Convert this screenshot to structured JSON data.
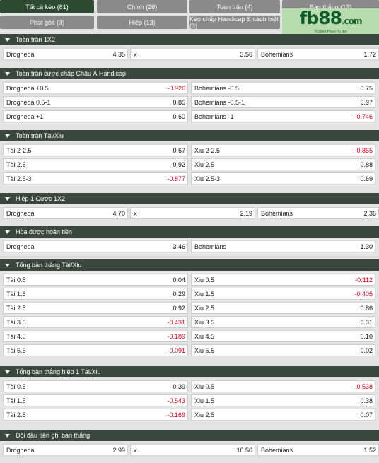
{
  "tabs": [
    {
      "label": "Tất cả kèo (81)",
      "active": true
    },
    {
      "label": "Chính (26)"
    },
    {
      "label": "Toàn trận (4)"
    },
    {
      "label": "Bàn thắng (13)"
    },
    {
      "label": "Phạt góc (3)"
    },
    {
      "label": "Hiệp (13)"
    },
    {
      "label": "Kèo chấp Handicap & cách biệt (3)"
    }
  ],
  "logo": {
    "main": "fb88",
    "dot": ".com",
    "tagline": "Trusted Place To Bet"
  },
  "sections": [
    {
      "title": "Toàn trận 1X2",
      "layout": "three",
      "rows": [
        [
          {
            "label": "Drogheda",
            "odd": "4.35"
          },
          {
            "label": "x",
            "odd": "3.56"
          },
          {
            "label": "Bohemians",
            "odd": "1.72"
          }
        ]
      ]
    },
    {
      "title": "Toàn trận cược chấp Châu Á Handicap",
      "layout": "two",
      "rows": [
        [
          {
            "label": "Drogheda +0.5",
            "odd": "-0.926"
          },
          {
            "label": "Bohemians -0.5",
            "odd": "0.75"
          }
        ],
        [
          {
            "label": "Drogheda 0.5-1",
            "odd": "0.85"
          },
          {
            "label": "Bohemians -0.5-1",
            "odd": "0.97"
          }
        ],
        [
          {
            "label": "Drogheda +1",
            "odd": "0.60"
          },
          {
            "label": "Bohemians -1",
            "odd": "-0.746"
          }
        ]
      ]
    },
    {
      "title": "Toàn trận Tài/Xiu",
      "layout": "two",
      "rows": [
        [
          {
            "label": "Tài 2-2.5",
            "odd": "0.67"
          },
          {
            "label": "Xiu 2-2.5",
            "odd": "-0.855"
          }
        ],
        [
          {
            "label": "Tài 2.5",
            "odd": "0.92"
          },
          {
            "label": "Xiu 2.5",
            "odd": "0.88"
          }
        ],
        [
          {
            "label": "Tài 2.5-3",
            "odd": "-0.877"
          },
          {
            "label": "Xiu 2.5-3",
            "odd": "0.69"
          }
        ]
      ]
    },
    {
      "title": "Hiệp 1 Cược 1X2",
      "layout": "three",
      "rows": [
        [
          {
            "label": "Drogheda",
            "odd": "4.70"
          },
          {
            "label": "x",
            "odd": "2.19"
          },
          {
            "label": "Bohemians",
            "odd": "2.36"
          }
        ]
      ]
    },
    {
      "title": "Hòa được hoàn tiền",
      "layout": "two",
      "rows": [
        [
          {
            "label": "Drogheda",
            "odd": "3.46"
          },
          {
            "label": "Bohemians",
            "odd": "1.30"
          }
        ]
      ]
    },
    {
      "title": "Tổng bàn thắng Tài/Xiu",
      "layout": "two",
      "rows": [
        [
          {
            "label": "Tài 0.5",
            "odd": "0.04"
          },
          {
            "label": "Xiu 0.5",
            "odd": "-0.112"
          }
        ],
        [
          {
            "label": "Tài 1.5",
            "odd": "0.29"
          },
          {
            "label": "Xiu 1.5",
            "odd": "-0.405"
          }
        ],
        [
          {
            "label": "Tài 2.5",
            "odd": "0.92"
          },
          {
            "label": "Xiu 2.5",
            "odd": "0.86"
          }
        ],
        [
          {
            "label": "Tài 3.5",
            "odd": "-0.431"
          },
          {
            "label": "Xiu 3.5",
            "odd": "0.31"
          }
        ],
        [
          {
            "label": "Tài 4.5",
            "odd": "-0.189"
          },
          {
            "label": "Xiu 4.5",
            "odd": "0.10"
          }
        ],
        [
          {
            "label": "Tài 5.5",
            "odd": "-0.091"
          },
          {
            "label": "Xiu 5.5",
            "odd": "0.02"
          }
        ]
      ]
    },
    {
      "title": "Tổng bàn thắng hiệp 1 Tài/Xiu",
      "layout": "two",
      "rows": [
        [
          {
            "label": "Tài 0.5",
            "odd": "0.39"
          },
          {
            "label": "Xiu 0.5",
            "odd": "-0.538"
          }
        ],
        [
          {
            "label": "Tài 1.5",
            "odd": "-0.543"
          },
          {
            "label": "Xiu 1.5",
            "odd": "0.38"
          }
        ],
        [
          {
            "label": "Tài 2.5",
            "odd": "-0.169"
          },
          {
            "label": "Xiu 2.5",
            "odd": "0.07"
          }
        ]
      ]
    },
    {
      "title": "Đội đầu tiên ghi bàn thắng",
      "layout": "three",
      "rows": [
        [
          {
            "label": "Drogheda",
            "odd": "2.99"
          },
          {
            "label": "x",
            "odd": "10.50"
          },
          {
            "label": "Bohemians",
            "odd": "1.52"
          }
        ]
      ]
    }
  ],
  "colors": {
    "header": "#3a473d",
    "active_tab": "#2e4a31",
    "tab": "#8a8a8a",
    "negative": "#d0021b"
  },
  "icons": {
    "section_toggle": "chevron-down-icon"
  }
}
